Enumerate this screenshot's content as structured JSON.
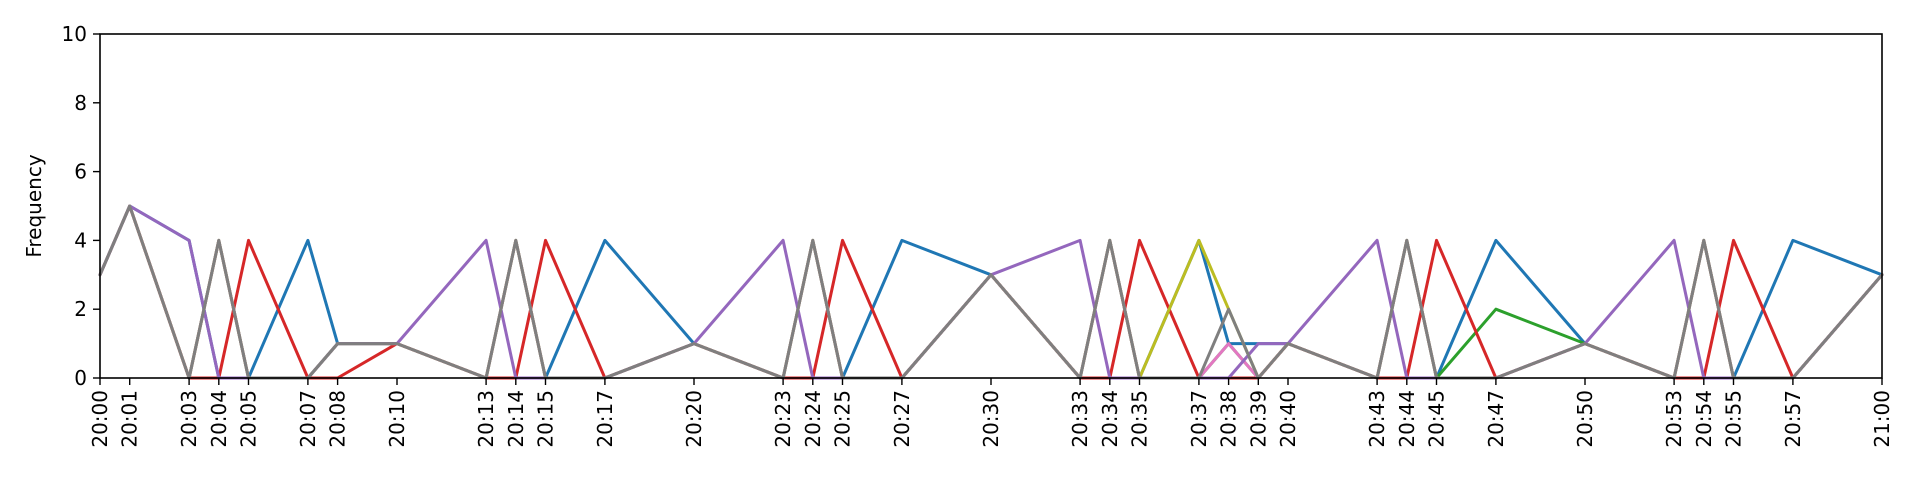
{
  "chart_data": {
    "type": "line",
    "title": "",
    "xlabel": "",
    "ylabel": "Frequency",
    "ylim": [
      0,
      10
    ],
    "yticks": [
      0,
      2,
      4,
      6,
      8,
      10
    ],
    "grid": false,
    "x": [
      "20:00",
      "20:01",
      "20:03",
      "20:04",
      "20:05",
      "20:07",
      "20:08",
      "20:10",
      "20:13",
      "20:14",
      "20:15",
      "20:17",
      "20:20",
      "20:23",
      "20:24",
      "20:25",
      "20:27",
      "20:30",
      "20:33",
      "20:34",
      "20:35",
      "20:37",
      "20:38",
      "20:39",
      "20:40",
      "20:43",
      "20:44",
      "20:45",
      "20:47",
      "20:50",
      "20:53",
      "20:54",
      "20:55",
      "20:57",
      "21:00"
    ],
    "series": [
      {
        "color": "#1f77b4",
        "values": [
          3,
          5,
          4,
          0,
          0,
          4,
          1,
          1,
          0,
          0,
          0,
          4,
          1,
          0,
          0,
          0,
          4,
          3,
          0,
          0,
          0,
          4,
          1,
          1,
          1,
          0,
          0,
          0,
          4,
          1,
          0,
          0,
          0,
          4,
          3
        ]
      },
      {
        "color": "#2ca02c",
        "values": [
          3,
          5,
          0,
          4,
          0,
          0,
          1,
          1,
          0,
          4,
          0,
          0,
          1,
          0,
          4,
          0,
          0,
          3,
          0,
          4,
          0,
          0,
          1,
          0,
          1,
          0,
          4,
          0,
          2,
          1,
          0,
          4,
          0,
          0,
          3
        ]
      },
      {
        "color": "#d62728",
        "values": [
          3,
          5,
          0,
          0,
          4,
          0,
          0,
          1,
          0,
          0,
          4,
          0,
          1,
          0,
          0,
          4,
          0,
          3,
          0,
          0,
          4,
          0,
          0,
          0,
          1,
          0,
          0,
          4,
          0,
          1,
          0,
          0,
          4,
          0,
          3
        ]
      },
      {
        "color": "#bcbd22",
        "values": [
          3,
          5,
          0,
          4,
          0,
          0,
          1,
          1,
          0,
          4,
          0,
          0,
          1,
          0,
          4,
          0,
          0,
          3,
          0,
          4,
          0,
          4,
          2,
          0,
          1,
          0,
          4,
          0,
          0,
          1,
          0,
          4,
          0,
          0,
          3
        ]
      },
      {
        "color": "#e377c2",
        "values": [
          3,
          5,
          0,
          4,
          0,
          0,
          1,
          1,
          0,
          4,
          0,
          0,
          1,
          0,
          4,
          0,
          0,
          3,
          0,
          4,
          0,
          0,
          1,
          0,
          1,
          0,
          4,
          0,
          0,
          1,
          0,
          4,
          0,
          0,
          3
        ]
      },
      {
        "color": "#9467bd",
        "values": [
          3,
          5,
          4,
          0,
          0,
          0,
          1,
          1,
          4,
          0,
          0,
          0,
          1,
          4,
          0,
          0,
          0,
          3,
          4,
          0,
          0,
          0,
          0,
          1,
          1,
          4,
          0,
          0,
          0,
          1,
          4,
          0,
          0,
          0,
          3
        ]
      },
      {
        "color": "#7f7f7f",
        "values": [
          3,
          5,
          0,
          4,
          0,
          0,
          1,
          1,
          0,
          4,
          0,
          0,
          1,
          0,
          4,
          0,
          0,
          3,
          0,
          4,
          0,
          0,
          2,
          0,
          1,
          0,
          4,
          0,
          0,
          1,
          0,
          4,
          0,
          0,
          3
        ]
      }
    ]
  }
}
